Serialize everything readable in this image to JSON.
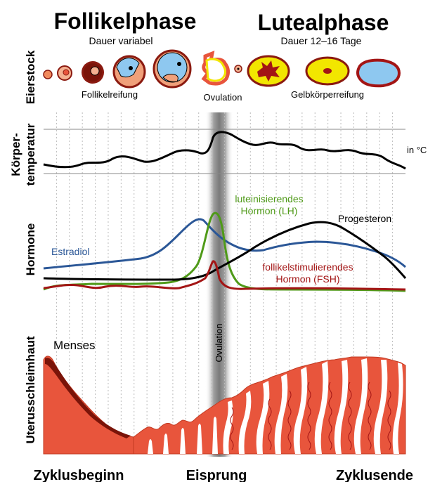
{
  "titles": {
    "follicular_phase": "Follikelphase",
    "luteal_phase": "Lutealphase",
    "follicular_duration": "Dauer variabel",
    "luteal_duration": "Dauer 12–16 Tage"
  },
  "row_labels": {
    "ovary": "Eierstock",
    "temperature_line1": "Körper-",
    "temperature_line2": "temperatur",
    "hormones": "Hormone",
    "endometrium": "Uterusschleimhaut"
  },
  "ovary_stages": {
    "follicle_maturation": "Follikelreifung",
    "ovulation": "Ovulation",
    "corpus_luteum_maturation": "Gelbkörperreifung"
  },
  "temperature": {
    "unit": "in °C"
  },
  "hormones": {
    "estradiol": "Estradiol",
    "lh_line1": "luteinisierendes",
    "lh_line2": "Hormon (LH)",
    "progesterone": "Progesteron",
    "fsh_line1": "follikelstimulierendes",
    "fsh_line2": "Hormon (FSH)"
  },
  "colors": {
    "estradiol": "#2b5797",
    "lh": "#4f9a18",
    "progesterone": "#000000",
    "fsh": "#a31515",
    "endometrium": "#e8553c",
    "endometrium_dark": "#8b1a10",
    "corpus_luteum": "#f2e600",
    "follicle_fluid": "#8ec8f0",
    "ovulation_band": "#909090"
  },
  "ovulation_band_label": "Ovulation",
  "endometrium": {
    "menses": "Menses"
  },
  "cycle_axis": {
    "start": "Zyklusbeginn",
    "ovulation": "Eisprung",
    "end": "Zyklusende"
  }
}
